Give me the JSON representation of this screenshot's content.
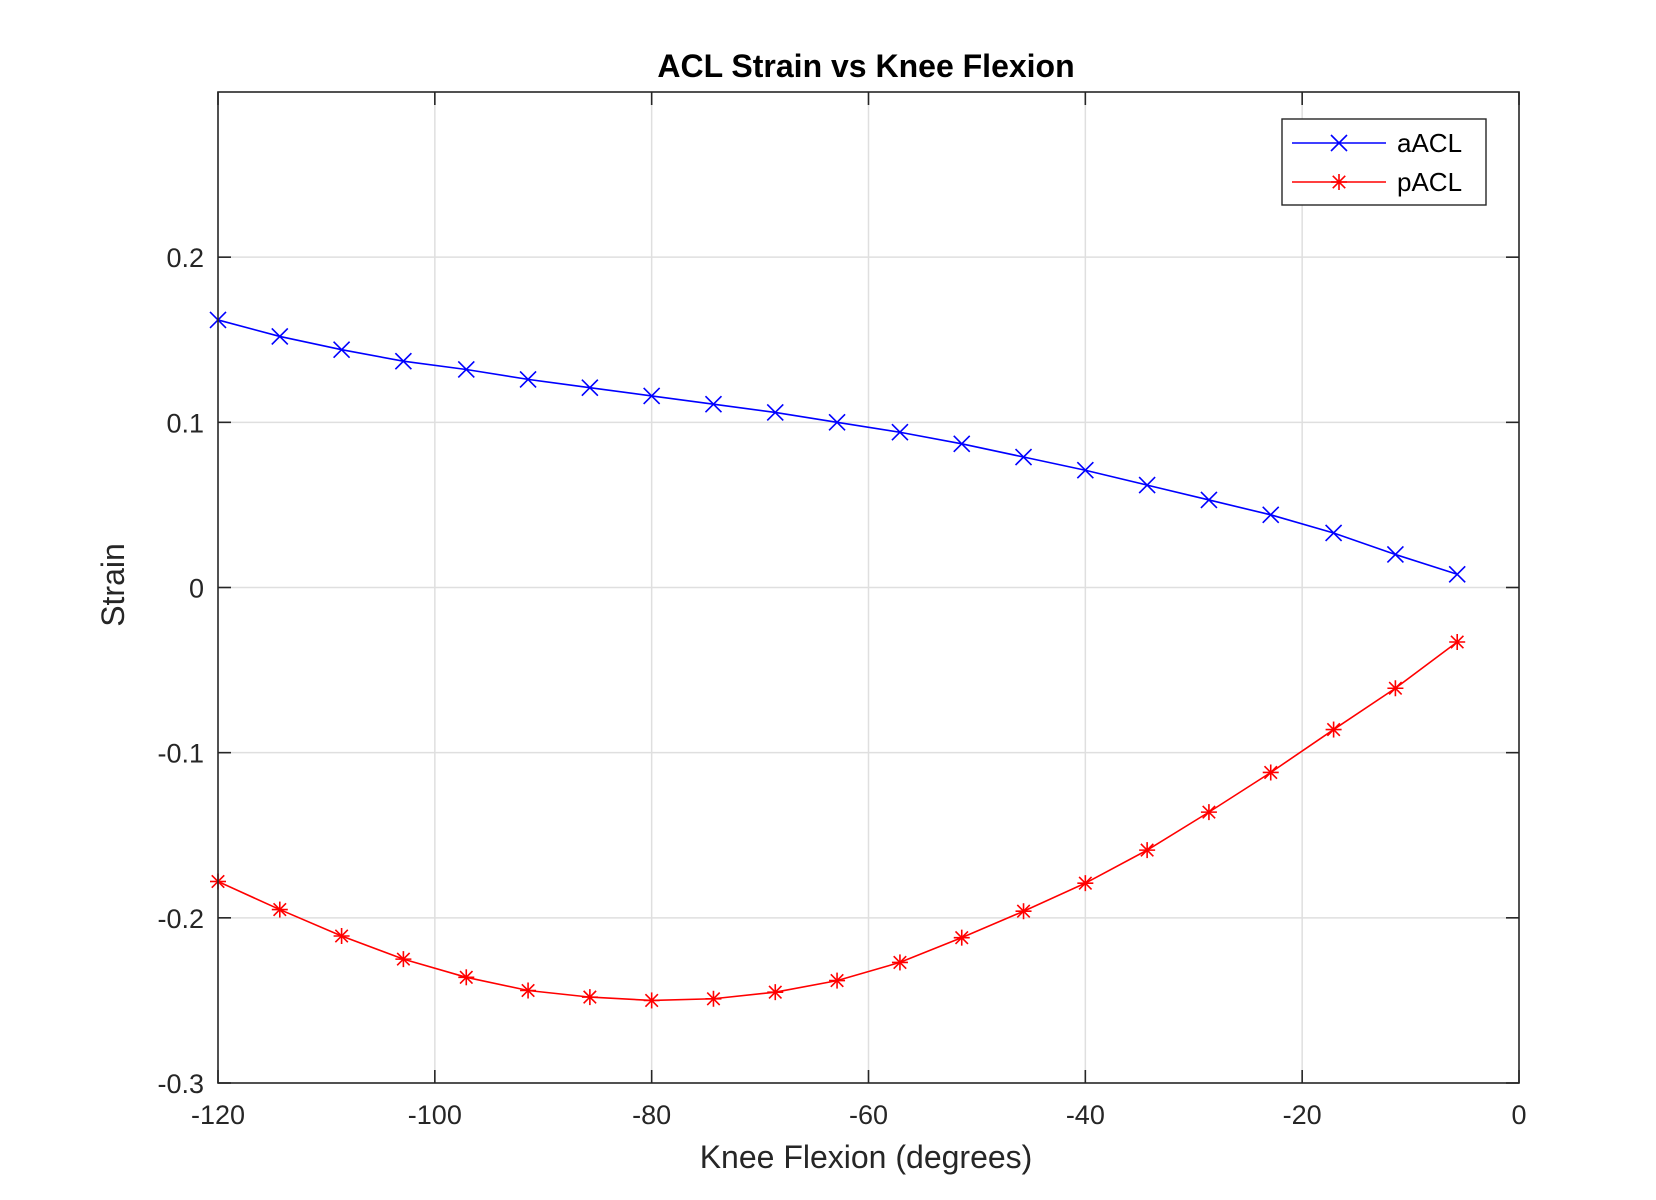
{
  "chart_data": {
    "type": "line",
    "title": "ACL Strain vs Knee Flexion",
    "xlabel": "Knee Flexion (degrees)",
    "ylabel": "Strain",
    "xlim": [
      -120,
      0
    ],
    "ylim": [
      -0.3,
      0.3
    ],
    "xticks": [
      -120,
      -100,
      -80,
      -60,
      -40,
      -20,
      0
    ],
    "xtick_labels": [
      "-120",
      "-100",
      "-80",
      "-60",
      "-40",
      "-20",
      "0"
    ],
    "yticks": [
      -0.3,
      -0.2,
      -0.1,
      0,
      0.1,
      0.2
    ],
    "ytick_labels": [
      "-0.3",
      "-0.2",
      "-0.1",
      "0",
      "0.1",
      "0.2"
    ],
    "grid": true,
    "legend_position": "top-right",
    "x": [
      -120,
      -114.3,
      -108.6,
      -102.9,
      -97.1,
      -91.4,
      -85.7,
      -80,
      -74.3,
      -68.6,
      -62.9,
      -57.1,
      -51.4,
      -45.7,
      -40,
      -34.3,
      -28.6,
      -22.9,
      -17.1,
      -11.4,
      -5.7
    ],
    "series": [
      {
        "name": "aACL",
        "color": "#0000ff",
        "marker": "x",
        "values": [
          0.162,
          0.152,
          0.144,
          0.137,
          0.132,
          0.126,
          0.121,
          0.116,
          0.111,
          0.106,
          0.1,
          0.094,
          0.087,
          0.079,
          0.071,
          0.062,
          0.053,
          0.044,
          0.033,
          0.02,
          0.008
        ]
      },
      {
        "name": "pACL",
        "color": "#ff0000",
        "marker": "asterisk",
        "values": [
          -0.178,
          -0.195,
          -0.211,
          -0.225,
          -0.236,
          -0.244,
          -0.248,
          -0.25,
          -0.249,
          -0.245,
          -0.238,
          -0.227,
          -0.212,
          -0.196,
          -0.179,
          -0.159,
          -0.136,
          -0.112,
          -0.086,
          -0.061,
          -0.033
        ]
      }
    ]
  }
}
